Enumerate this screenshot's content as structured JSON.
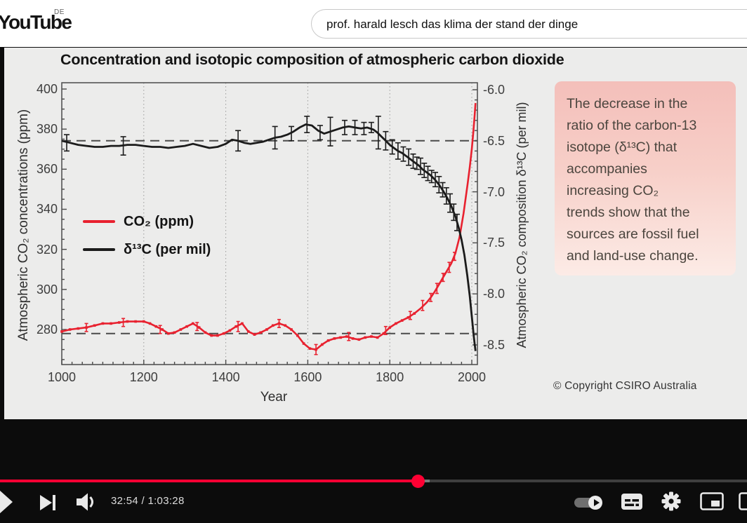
{
  "header": {
    "logo_text": "YouTube",
    "region_code": "DE",
    "search": {
      "value": "prof. harald lesch das klima der stand der dinge"
    }
  },
  "figure": {
    "annotation_text": "The decrease in the\nratio of the carbon-13\nisotope (δ¹³C) that\naccompanies\nincreasing CO₂\ntrends show that the\nsources are fossil fuel\nand land-use change.",
    "copyright": "© Copyright CSIRO Australia"
  },
  "player": {
    "time_display": "32:54 / 1:03:28",
    "progress_percent": 55.1,
    "buffered_percent": 57.5,
    "colors": {
      "progress": "#ff0033"
    },
    "controls_left": [
      "play-icon",
      "next-icon",
      "volume-icon"
    ],
    "controls_right": [
      "autoplay-toggle",
      "captions-icon",
      "settings-icon",
      "miniplayer-icon",
      "theater-icon"
    ]
  },
  "chart_data": {
    "type": "line",
    "title": "Concentration and isotopic composition of atmospheric carbon dioxide",
    "xlabel": "Year",
    "x_ticks": [
      1000,
      1200,
      1400,
      1600,
      1800,
      2000
    ],
    "x_gridlines": [
      1200,
      1400,
      1600,
      1800,
      2000
    ],
    "xlim": [
      1000,
      2013
    ],
    "grid": "vertical-dotted",
    "legend_position": "center-left",
    "axes": {
      "left": {
        "label": "Atmospheric CO₂ concentrations (ppm)",
        "ticks": [
          280,
          300,
          320,
          340,
          360,
          380,
          400
        ],
        "lim": [
          262.5,
          403
        ]
      },
      "right": {
        "label": "Atmospheric CO₂ composition δ¹³C (per mil)",
        "ticks": [
          -6.0,
          -6.5,
          -7.0,
          -7.5,
          -8.0,
          -8.5
        ],
        "lim": [
          -8.69,
          -5.93
        ]
      }
    },
    "reference_lines": [
      {
        "axis": "left",
        "value": 278
      },
      {
        "axis": "right",
        "value": -6.5
      }
    ],
    "series": [
      {
        "name": "CO₂ (ppm)",
        "axis": "left",
        "color": "#e8212f",
        "marker": "square",
        "points": [
          [
            1000,
            279
          ],
          [
            1020,
            280
          ],
          [
            1040,
            280.5
          ],
          [
            1060,
            281
          ],
          [
            1080,
            282
          ],
          [
            1100,
            283
          ],
          [
            1120,
            283
          ],
          [
            1140,
            283.5
          ],
          [
            1160,
            284
          ],
          [
            1180,
            284
          ],
          [
            1200,
            284
          ],
          [
            1215,
            283
          ],
          [
            1230,
            281.5
          ],
          [
            1245,
            280
          ],
          [
            1260,
            278
          ],
          [
            1275,
            278.5
          ],
          [
            1290,
            280
          ],
          [
            1305,
            281.5
          ],
          [
            1320,
            283
          ],
          [
            1335,
            281
          ],
          [
            1350,
            278.5
          ],
          [
            1365,
            277
          ],
          [
            1380,
            277
          ],
          [
            1395,
            278
          ],
          [
            1410,
            279.5
          ],
          [
            1425,
            281.5
          ],
          [
            1440,
            283
          ],
          [
            1455,
            279
          ],
          [
            1470,
            277.5
          ],
          [
            1485,
            278.5
          ],
          [
            1500,
            280
          ],
          [
            1515,
            282
          ],
          [
            1530,
            283
          ],
          [
            1545,
            282
          ],
          [
            1560,
            280
          ],
          [
            1575,
            277
          ],
          [
            1590,
            273
          ],
          [
            1605,
            270.5
          ],
          [
            1620,
            270
          ],
          [
            1635,
            272.5
          ],
          [
            1650,
            274.5
          ],
          [
            1665,
            275.5
          ],
          [
            1680,
            276
          ],
          [
            1695,
            276.5
          ],
          [
            1710,
            275.5
          ],
          [
            1725,
            275
          ],
          [
            1740,
            276
          ],
          [
            1755,
            276.5
          ],
          [
            1770,
            276
          ],
          [
            1785,
            278
          ],
          [
            1800,
            281
          ],
          [
            1815,
            283
          ],
          [
            1830,
            284.5
          ],
          [
            1845,
            286
          ],
          [
            1860,
            288
          ],
          [
            1875,
            290.5
          ],
          [
            1890,
            293.5
          ],
          [
            1900,
            296
          ],
          [
            1910,
            299
          ],
          [
            1920,
            302.5
          ],
          [
            1930,
            306
          ],
          [
            1940,
            309.5
          ],
          [
            1950,
            313
          ],
          [
            1960,
            318
          ],
          [
            1970,
            326
          ],
          [
            1980,
            338
          ],
          [
            1990,
            353
          ],
          [
            1995,
            361
          ],
          [
            2000,
            370
          ],
          [
            2004,
            379
          ],
          [
            2007,
            387
          ],
          [
            2009,
            393
          ]
        ],
        "error_bars": [
          [
            1060,
            281,
            2
          ],
          [
            1150,
            283.5,
            2
          ],
          [
            1240,
            280,
            2
          ],
          [
            1330,
            281.5,
            2
          ],
          [
            1430,
            281.5,
            2.5
          ],
          [
            1530,
            283,
            2
          ],
          [
            1620,
            270,
            2.5
          ],
          [
            1700,
            276.5,
            2
          ],
          [
            1790,
            279.5,
            2
          ],
          [
            1850,
            287,
            2
          ],
          [
            1880,
            292,
            2.5
          ],
          [
            1900,
            296,
            2
          ],
          [
            1915,
            300.5,
            2.5
          ],
          [
            1930,
            306,
            2
          ],
          [
            1945,
            311,
            2.5
          ],
          [
            1958,
            316.5,
            2
          ]
        ]
      },
      {
        "name": "δ¹³C (per mil)",
        "axis": "right",
        "color": "#1b1b1b",
        "marker": "none",
        "points": [
          [
            1000,
            -6.5
          ],
          [
            1020,
            -6.52
          ],
          [
            1040,
            -6.54
          ],
          [
            1060,
            -6.55
          ],
          [
            1080,
            -6.56
          ],
          [
            1100,
            -6.56
          ],
          [
            1120,
            -6.55
          ],
          [
            1140,
            -6.55
          ],
          [
            1160,
            -6.54
          ],
          [
            1180,
            -6.54
          ],
          [
            1200,
            -6.55
          ],
          [
            1220,
            -6.56
          ],
          [
            1240,
            -6.56
          ],
          [
            1260,
            -6.57
          ],
          [
            1280,
            -6.56
          ],
          [
            1300,
            -6.55
          ],
          [
            1320,
            -6.53
          ],
          [
            1340,
            -6.55
          ],
          [
            1360,
            -6.57
          ],
          [
            1380,
            -6.56
          ],
          [
            1400,
            -6.53
          ],
          [
            1415,
            -6.49
          ],
          [
            1430,
            -6.5
          ],
          [
            1445,
            -6.52
          ],
          [
            1460,
            -6.53
          ],
          [
            1475,
            -6.52
          ],
          [
            1490,
            -6.51
          ],
          [
            1505,
            -6.49
          ],
          [
            1520,
            -6.47
          ],
          [
            1535,
            -6.46
          ],
          [
            1550,
            -6.44
          ],
          [
            1565,
            -6.41
          ],
          [
            1580,
            -6.37
          ],
          [
            1595,
            -6.34
          ],
          [
            1610,
            -6.35
          ],
          [
            1625,
            -6.4
          ],
          [
            1640,
            -6.43
          ],
          [
            1655,
            -6.41
          ],
          [
            1670,
            -6.39
          ],
          [
            1685,
            -6.37
          ],
          [
            1700,
            -6.36
          ],
          [
            1715,
            -6.37
          ],
          [
            1730,
            -6.38
          ],
          [
            1745,
            -6.37
          ],
          [
            1760,
            -6.39
          ],
          [
            1770,
            -6.42
          ],
          [
            1780,
            -6.46
          ],
          [
            1790,
            -6.5
          ],
          [
            1800,
            -6.54
          ],
          [
            1810,
            -6.57
          ],
          [
            1820,
            -6.6
          ],
          [
            1830,
            -6.62
          ],
          [
            1840,
            -6.65
          ],
          [
            1850,
            -6.68
          ],
          [
            1860,
            -6.71
          ],
          [
            1870,
            -6.74
          ],
          [
            1880,
            -6.78
          ],
          [
            1890,
            -6.81
          ],
          [
            1900,
            -6.84
          ],
          [
            1910,
            -6.88
          ],
          [
            1920,
            -6.93
          ],
          [
            1930,
            -6.99
          ],
          [
            1940,
            -7.06
          ],
          [
            1950,
            -7.14
          ],
          [
            1960,
            -7.24
          ],
          [
            1968,
            -7.35
          ],
          [
            1975,
            -7.47
          ],
          [
            1982,
            -7.62
          ],
          [
            1989,
            -7.82
          ],
          [
            1995,
            -8.02
          ],
          [
            2000,
            -8.22
          ],
          [
            2005,
            -8.42
          ],
          [
            2009,
            -8.56
          ]
        ],
        "error_bars": [
          [
            1012,
            -6.52,
            0.08
          ],
          [
            1150,
            -6.55,
            0.09
          ],
          [
            1430,
            -6.5,
            0.1
          ],
          [
            1520,
            -6.47,
            0.11
          ],
          [
            1560,
            -6.43,
            0.07
          ],
          [
            1598,
            -6.34,
            0.08
          ],
          [
            1630,
            -6.42,
            0.07
          ],
          [
            1655,
            -6.41,
            0.14
          ],
          [
            1690,
            -6.37,
            0.07
          ],
          [
            1715,
            -6.37,
            0.07
          ],
          [
            1737,
            -6.38,
            0.06
          ],
          [
            1755,
            -6.37,
            0.05
          ],
          [
            1772,
            -6.42,
            0.16
          ],
          [
            1790,
            -6.5,
            0.09
          ],
          [
            1806,
            -6.56,
            0.07
          ],
          [
            1820,
            -6.6,
            0.08
          ],
          [
            1833,
            -6.63,
            0.07
          ],
          [
            1846,
            -6.66,
            0.08
          ],
          [
            1857,
            -6.7,
            0.07
          ],
          [
            1866,
            -6.72,
            0.06
          ],
          [
            1875,
            -6.75,
            0.08
          ],
          [
            1884,
            -6.79,
            0.07
          ],
          [
            1893,
            -6.82,
            0.07
          ],
          [
            1902,
            -6.85,
            0.06
          ],
          [
            1911,
            -6.88,
            0.07
          ],
          [
            1920,
            -6.93,
            0.08
          ],
          [
            1929,
            -6.98,
            0.07
          ],
          [
            1938,
            -7.04,
            0.08
          ],
          [
            1947,
            -7.11,
            0.09
          ],
          [
            1956,
            -7.2,
            0.08
          ],
          [
            1964,
            -7.3,
            0.08
          ]
        ]
      }
    ]
  }
}
